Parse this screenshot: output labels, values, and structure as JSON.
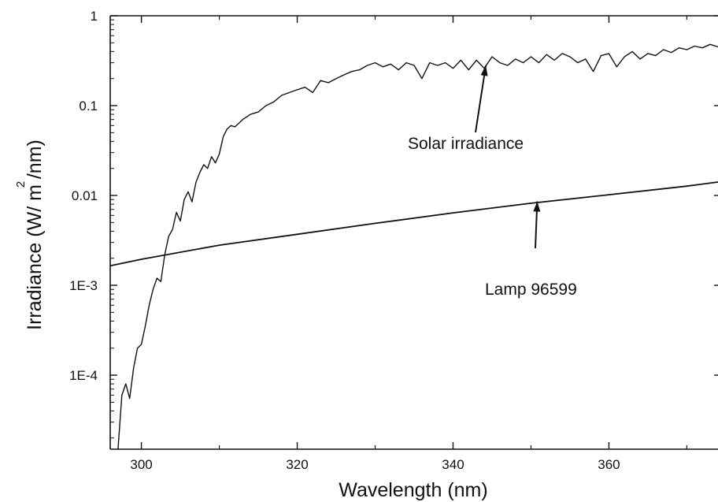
{
  "chart_data": {
    "type": "line",
    "xlabel": "Wavelength (nm)",
    "ylabel_main": "Irradiance (W/ m /nm)",
    "ylabel_superscript": "2",
    "yscale": "log",
    "xlim": [
      296,
      374
    ],
    "ylim": [
      1.5e-05,
      1
    ],
    "grid": false,
    "x_ticks": [
      300,
      320,
      340,
      360
    ],
    "x_tick_labels": [
      "300",
      "320",
      "340",
      "360"
    ],
    "y_ticks": [
      1,
      0.1,
      0.01,
      0.001,
      0.0001
    ],
    "y_tick_labels": [
      "1",
      "0.1",
      "0.01",
      "1E-3",
      "1E-4"
    ],
    "annotations": [
      {
        "text": "Solar irradiance",
        "points_to": [
          344.2,
          0.28
        ]
      },
      {
        "text": "Lamp 96599",
        "points_to": [
          350.8,
          0.0086
        ]
      }
    ],
    "series": [
      {
        "name": "Solar irradiance",
        "x": [
          297.0,
          297.5,
          298.0,
          298.5,
          299.0,
          299.5,
          300.0,
          300.5,
          301.0,
          301.5,
          302.0,
          302.5,
          303.0,
          303.5,
          304.0,
          304.5,
          305.0,
          305.5,
          306.0,
          306.5,
          307.0,
          307.5,
          308.0,
          308.5,
          309.0,
          309.5,
          310.0,
          310.5,
          311.0,
          311.5,
          312.0,
          313.0,
          314.0,
          315.0,
          316.0,
          317.0,
          318.0,
          319.0,
          320.0,
          321.0,
          322.0,
          323.0,
          324.0,
          325.0,
          326.0,
          327.0,
          328.0,
          329.0,
          330.0,
          331.0,
          332.0,
          333.0,
          334.0,
          335.0,
          336.0,
          337.0,
          338.0,
          339.0,
          340.0,
          341.0,
          342.0,
          343.0,
          344.0,
          345.0,
          346.0,
          347.0,
          348.0,
          349.0,
          350.0,
          351.0,
          352.0,
          353.0,
          354.0,
          355.0,
          356.0,
          357.0,
          358.0,
          359.0,
          360.0,
          361.0,
          362.0,
          363.0,
          364.0,
          365.0,
          366.0,
          367.0,
          368.0,
          369.0,
          370.0,
          371.0,
          372.0,
          373.0,
          374.0
        ],
        "y": [
          1.5e-05,
          6e-05,
          8e-05,
          5.5e-05,
          0.00012,
          0.0002,
          0.00022,
          0.00035,
          0.0006,
          0.0009,
          0.0012,
          0.0011,
          0.0022,
          0.0035,
          0.0042,
          0.0065,
          0.0052,
          0.009,
          0.011,
          0.0085,
          0.014,
          0.018,
          0.022,
          0.02,
          0.027,
          0.023,
          0.029,
          0.045,
          0.055,
          0.06,
          0.058,
          0.07,
          0.08,
          0.085,
          0.1,
          0.11,
          0.13,
          0.14,
          0.15,
          0.16,
          0.14,
          0.19,
          0.18,
          0.2,
          0.22,
          0.24,
          0.25,
          0.28,
          0.3,
          0.27,
          0.29,
          0.25,
          0.3,
          0.28,
          0.2,
          0.3,
          0.28,
          0.3,
          0.26,
          0.32,
          0.25,
          0.32,
          0.26,
          0.35,
          0.3,
          0.28,
          0.33,
          0.3,
          0.35,
          0.3,
          0.37,
          0.32,
          0.38,
          0.35,
          0.3,
          0.33,
          0.24,
          0.36,
          0.38,
          0.27,
          0.35,
          0.4,
          0.33,
          0.38,
          0.36,
          0.42,
          0.39,
          0.44,
          0.42,
          0.46,
          0.44,
          0.48,
          0.45
        ]
      },
      {
        "name": "Lamp 96599",
        "x": [
          296,
          300,
          310,
          320,
          330,
          340,
          350,
          360,
          370,
          374
        ],
        "y": [
          0.00165,
          0.00195,
          0.0028,
          0.0037,
          0.0049,
          0.0064,
          0.0082,
          0.0102,
          0.0127,
          0.0141
        ]
      }
    ]
  }
}
